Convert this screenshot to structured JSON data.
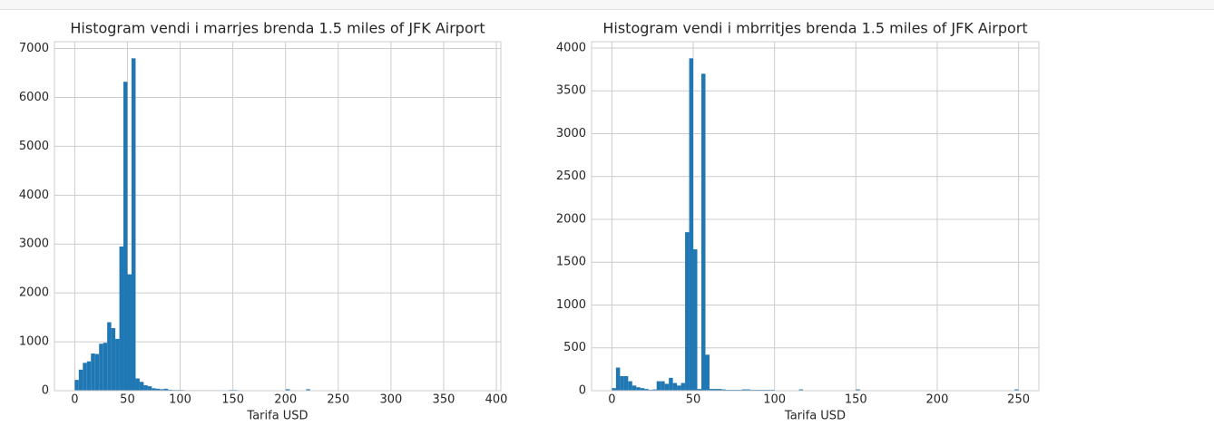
{
  "chart_data": [
    {
      "type": "histogram",
      "title": "Histogram vendi i marrjes brenda 1.5 miles of JFK Airport",
      "xlabel": "Tarifa USD",
      "color": "#1f77b4",
      "grid": true,
      "bins": [
        0,
        3.85,
        7.7,
        11.55,
        15.4,
        19.25,
        23.1,
        26.95,
        30.8,
        34.65,
        38.5,
        42.35,
        46.2,
        50.05,
        53.9,
        57.75,
        61.6,
        65.45,
        69.3,
        73.15,
        77,
        80.85,
        84.7,
        88.55,
        92.4,
        96.25,
        100.1,
        103.95,
        107.8,
        111.65,
        115.5,
        119.35,
        123.2,
        127.05,
        130.9,
        134.75,
        138.6,
        142.45,
        146.3,
        150.15,
        154,
        157.85,
        161.7,
        165.55,
        169.4,
        173.25,
        177.1,
        180.95,
        184.8,
        188.65,
        192.5,
        196.35,
        200.2,
        204.05,
        207.9,
        211.75,
        215.6,
        219.45,
        223.3,
        227.15,
        231,
        234.85,
        238.7,
        242.55,
        246.4,
        250.25,
        254.1,
        257.95,
        261.8,
        265.65,
        269.5,
        273.35,
        277.2,
        281.05,
        284.9,
        288.75,
        292.6,
        296.45,
        300.3,
        304.15,
        308,
        311.85,
        315.7,
        319.55,
        323.4,
        327.25,
        331.1,
        334.95,
        338.8,
        342.65,
        346.5,
        350.35,
        354.2,
        358.05,
        361.9,
        365.75,
        369.6,
        373.45,
        377.3,
        381.15,
        385
      ],
      "counts": [
        220,
        430,
        570,
        600,
        760,
        750,
        960,
        980,
        1400,
        1280,
        1060,
        2950,
        6320,
        2380,
        6800,
        250,
        180,
        110,
        90,
        50,
        40,
        30,
        40,
        20,
        15,
        15,
        15,
        10,
        10,
        10,
        10,
        10,
        10,
        10,
        10,
        10,
        10,
        10,
        15,
        15,
        10,
        5,
        5,
        5,
        5,
        5,
        5,
        5,
        5,
        5,
        5,
        5,
        30,
        10,
        5,
        5,
        5,
        30,
        5,
        5,
        5,
        5,
        3,
        3,
        3,
        3,
        3,
        3,
        3,
        3,
        2,
        2,
        2,
        2,
        2,
        2,
        2,
        2,
        2,
        2,
        2,
        2,
        2,
        2,
        2,
        2,
        2,
        2,
        2,
        2,
        1,
        1,
        1,
        1,
        1,
        1,
        1,
        1,
        1,
        3
      ],
      "xlim": [
        -19.25,
        404.25
      ],
      "ylim": [
        0,
        7140
      ],
      "xticks": [
        0,
        50,
        100,
        150,
        200,
        250,
        300,
        350,
        400
      ],
      "yticks": [
        0,
        1000,
        2000,
        3000,
        4000,
        5000,
        6000,
        7000
      ]
    },
    {
      "type": "histogram",
      "title": "Histogram vendi i mbrritjes brenda 1.5 miles of JFK Airport",
      "xlabel": "Tarifa USD",
      "color": "#1f77b4",
      "grid": true,
      "bins": [
        0,
        2.5,
        5,
        7.5,
        10,
        12.5,
        15,
        17.5,
        20,
        22.5,
        25,
        27.5,
        30,
        32.5,
        35,
        37.5,
        40,
        42.5,
        45,
        47.5,
        50,
        52.5,
        55,
        57.5,
        60,
        62.5,
        65,
        67.5,
        70,
        72.5,
        75,
        77.5,
        80,
        82.5,
        85,
        87.5,
        90,
        92.5,
        95,
        97.5,
        100,
        102.5,
        105,
        107.5,
        110,
        112.5,
        115,
        117.5,
        120,
        122.5,
        125,
        127.5,
        130,
        132.5,
        135,
        137.5,
        140,
        142.5,
        145,
        147.5,
        150,
        152.5,
        155,
        157.5,
        160,
        162.5,
        165,
        167.5,
        170,
        172.5,
        175,
        177.5,
        180,
        182.5,
        185,
        187.5,
        190,
        192.5,
        195,
        197.5,
        200,
        202.5,
        205,
        207.5,
        210,
        212.5,
        215,
        217.5,
        220,
        222.5,
        225,
        227.5,
        230,
        232.5,
        235,
        237.5,
        240,
        242.5,
        245,
        247.5,
        250
      ],
      "counts": [
        30,
        270,
        170,
        170,
        110,
        60,
        40,
        30,
        20,
        10,
        15,
        110,
        110,
        80,
        150,
        90,
        60,
        90,
        1850,
        3880,
        1650,
        20,
        3700,
        420,
        20,
        20,
        20,
        15,
        10,
        10,
        10,
        10,
        15,
        15,
        10,
        10,
        10,
        10,
        10,
        10,
        5,
        5,
        5,
        5,
        5,
        5,
        15,
        5,
        5,
        5,
        3,
        3,
        3,
        3,
        3,
        3,
        3,
        3,
        3,
        3,
        15,
        2,
        2,
        2,
        2,
        2,
        2,
        2,
        2,
        2,
        1,
        1,
        1,
        1,
        1,
        1,
        1,
        1,
        1,
        1,
        1,
        1,
        1,
        1,
        1,
        1,
        1,
        1,
        1,
        1,
        1,
        1,
        1,
        1,
        1,
        1,
        1,
        1,
        1,
        15
      ],
      "xlim": [
        -12.5,
        262.5
      ],
      "ylim": [
        0,
        4074
      ],
      "xticks": [
        0,
        50,
        100,
        150,
        200,
        250
      ],
      "yticks": [
        0,
        500,
        1000,
        1500,
        2000,
        2500,
        3000,
        3500,
        4000
      ]
    }
  ]
}
